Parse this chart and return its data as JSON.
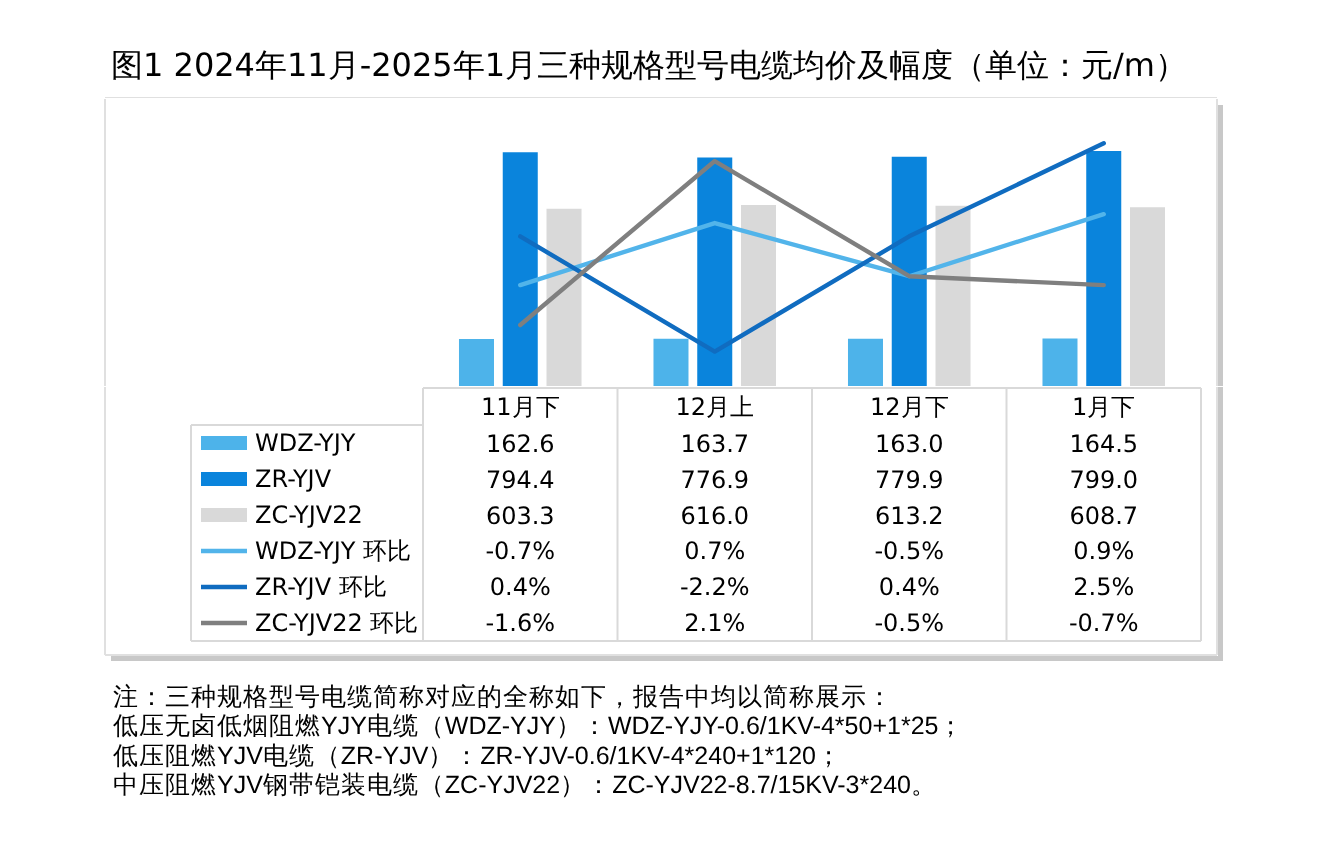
{
  "chart_data": {
    "type": "bar",
    "title": "图1 2024年11月-2025年1月三种规格型号电缆均价及幅度（单位：元/m）",
    "categories": [
      "11月下",
      "12月上",
      "12月下",
      "1月下"
    ],
    "series": [
      {
        "name": "WDZ-YJY",
        "color": "#4db3ea",
        "values": [
          162.6,
          163.7,
          163.0,
          164.5
        ],
        "value_labels": [
          "162.6",
          "163.7",
          "163.0",
          "164.5"
        ]
      },
      {
        "name": "ZR-YJV",
        "color": "#0a84dc",
        "values": [
          794.4,
          776.9,
          779.9,
          799.0
        ],
        "value_labels": [
          "794.4",
          "776.9",
          "779.9",
          "799.0"
        ]
      },
      {
        "name": "ZC-YJV22",
        "color": "#d9d9d9",
        "values": [
          603.3,
          616.0,
          613.2,
          608.7
        ],
        "value_labels": [
          "603.3",
          "616.0",
          "613.2",
          "608.7"
        ]
      },
      {
        "name": "WDZ-YJY 环比",
        "type": "line",
        "axis": "y2",
        "color": "#52b4ea",
        "values": [
          -0.7,
          0.7,
          -0.5,
          0.9
        ],
        "value_labels": [
          "-0.7%",
          "0.7%",
          "-0.5%",
          "0.9%"
        ]
      },
      {
        "name": "ZR-YJV 环比",
        "type": "line",
        "axis": "y2",
        "color": "#106cc0",
        "values": [
          0.4,
          -2.2,
          0.4,
          2.5
        ],
        "value_labels": [
          "0.4%",
          "-2.2%",
          "0.4%",
          "2.5%"
        ]
      },
      {
        "name": "ZC-YJV22 环比",
        "type": "line",
        "axis": "y2",
        "color": "#7f7f7f",
        "values": [
          -1.6,
          2.1,
          -0.5,
          -0.7
        ],
        "value_labels": [
          "-1.6%",
          "2.1%",
          "-0.5%",
          "-0.7%"
        ]
      }
    ],
    "ylim": [
      0,
      975
    ],
    "y2lim": [
      -3,
      3.5
    ],
    "tick_labels": "x",
    "legend": "bottom left",
    "annotations": [
      "注：三种规格型号电缆简称对应的全称如下，报告中均以简称展示：",
      "低压无卤低烟阻燃YJY电缆（WDZ-YJY）：WDZ-YJY-0.6/1KV-4*50+1*25；",
      "低压阻燃YJV电缆（ZR-YJV）：ZR-YJV-0.6/1KV-4*240+1*120；",
      "中压阻燃YJV钢带铠装电缆（ZC-YJV22）：ZC-YJV22-8.7/15KV-3*240。"
    ]
  }
}
